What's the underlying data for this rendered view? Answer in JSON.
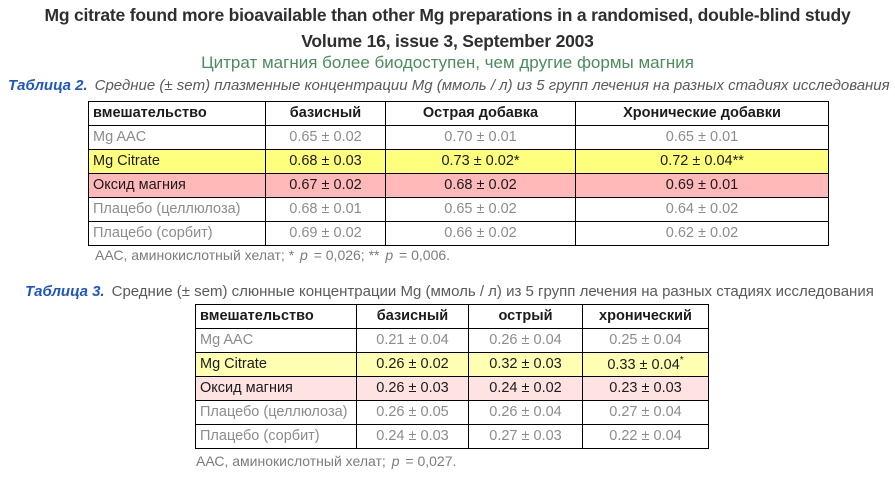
{
  "header": {
    "title": "Mg citrate found more bioavailable than other Mg preparations in a randomised, double-blind study",
    "subtitle": "Volume 16, issue 3, September 2003",
    "subtitle_ru": "Цитрат магния более биодоступен, чем другие формы магния"
  },
  "colors": {
    "label_blue": "#1d56c2",
    "subtitle_green": "#4c8b5c",
    "table2_yellow": "#feff7d",
    "table2_pink": "#ffb9b9",
    "table3_yellow": "#ffffb3",
    "table3_pink": "#ffe3e3"
  },
  "table2": {
    "label": "Таблица 2.",
    "caption": "Средние (± sem) плазменные концентрации Mg (ммоль / л) из 5 групп лечения на разных стадиях исследования",
    "columns": [
      "вмешательство",
      "базисный",
      "Острая добавка",
      "Хронические добавки"
    ],
    "rows": [
      {
        "name": "Mg AAC",
        "values": [
          "0.65 ± 0.02",
          "0.70 ± 0.01",
          "0.65 ± 0.01"
        ]
      },
      {
        "name": "Mg Citrate",
        "values": [
          "0.68 ± 0.03",
          "0.73 ± 0.02*",
          "0.72 ± 0.04**"
        ]
      },
      {
        "name": "Оксид магния",
        "values": [
          "0.67 ± 0.02",
          "0.68 ± 0.02",
          "0.69 ± 0.01"
        ]
      },
      {
        "name": "Плацебо (целлюлоза)",
        "values": [
          "0.68 ± 0.01",
          "0.65 ± 0.02",
          "0.64 ± 0.02"
        ]
      },
      {
        "name": "Плацебо (сорбит)",
        "values": [
          "0.69 ± 0.02",
          "0.66 ± 0.02",
          "0.62 ± 0.02"
        ]
      }
    ],
    "footnote_parts": [
      "ААС, аминокислотный хелат; * ",
      "p",
      " = 0,026; ** ",
      "p",
      " = 0,006."
    ]
  },
  "table3": {
    "label": "Таблица 3.",
    "caption": "Средние (± sem) слюнные концентрации Mg (ммоль / л) из 5 групп лечения на разных стадиях исследования",
    "columns": [
      "вмешательство",
      "базисный",
      "острый",
      "хронический"
    ],
    "rows": [
      {
        "name": "Mg AAC",
        "values": [
          "0.21 ± 0.04",
          "0.26 ± 0.04",
          "0.25 ± 0.04"
        ]
      },
      {
        "name": "Mg Citrate",
        "values": [
          "0.26 ± 0.02",
          "0.32 ± 0.03",
          "0.33 ± 0.04"
        ],
        "sup": "*"
      },
      {
        "name": "Оксид магния",
        "values": [
          "0.26 ± 0.03",
          "0.24 ± 0.02",
          "0.23 ± 0.03"
        ]
      },
      {
        "name": "Плацебо (целлюлоза)",
        "values": [
          "0.26 ± 0.05",
          "0.26 ± 0.04",
          "0.27 ± 0.04"
        ]
      },
      {
        "name": "Плацебо (сорбит)",
        "values": [
          "0.24 ± 0.03",
          "0.27 ± 0.03",
          "0.22 ± 0.04"
        ]
      }
    ],
    "footnote_parts": [
      "ААС, аминокислотный хелат; ",
      "p",
      " = 0,027."
    ]
  }
}
